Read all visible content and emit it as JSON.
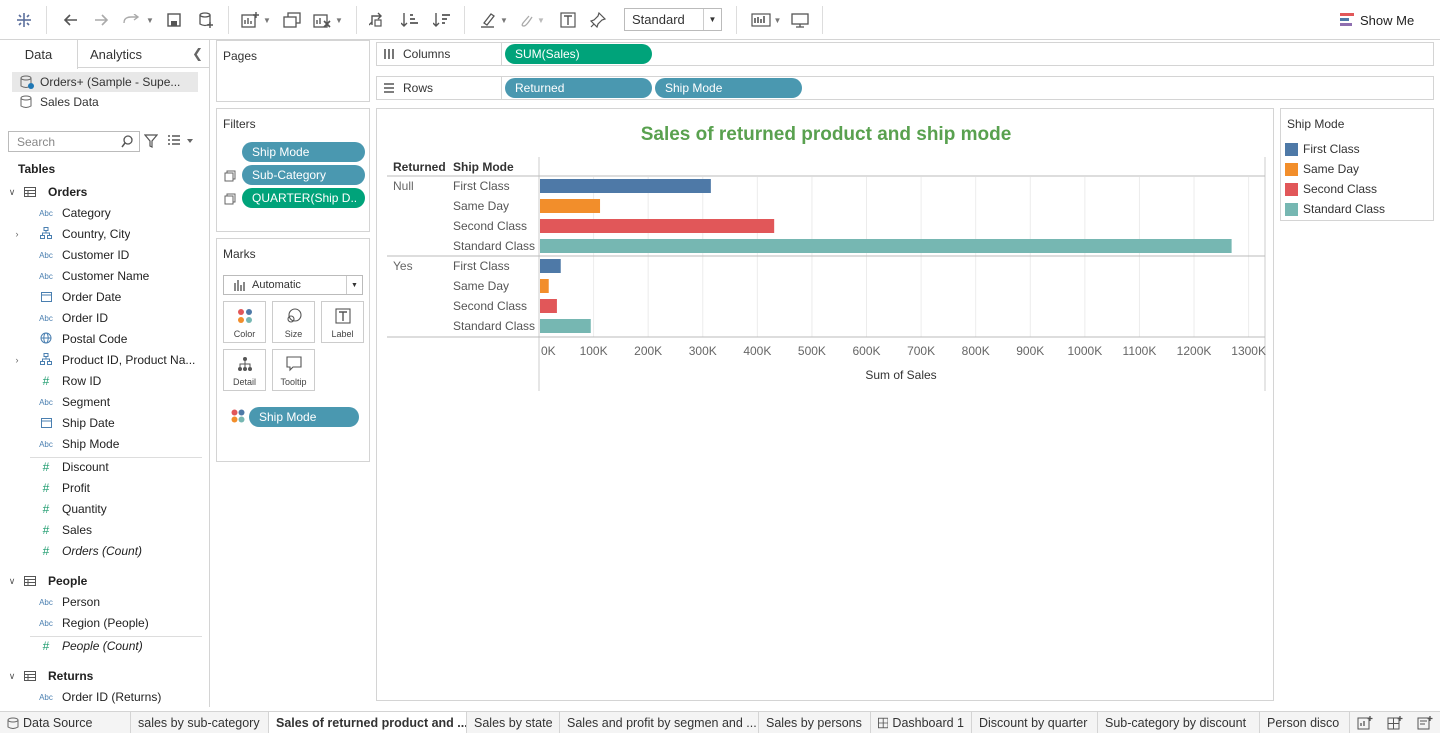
{
  "toolbar": {
    "view_select": "Standard",
    "show_me": "Show Me"
  },
  "data_pane": {
    "tabs": [
      "Data",
      "Analytics"
    ],
    "datasources": [
      "Orders+ (Sample - Supe...",
      "Sales Data"
    ],
    "search_placeholder": "Search",
    "tables_label": "Tables",
    "tables": [
      {
        "name": "Orders",
        "fields": [
          {
            "name": "Category",
            "type": "Abc"
          },
          {
            "name": "Country, City",
            "type": "hier"
          },
          {
            "name": "Customer ID",
            "type": "Abc"
          },
          {
            "name": "Customer Name",
            "type": "Abc"
          },
          {
            "name": "Order Date",
            "type": "date"
          },
          {
            "name": "Order ID",
            "type": "Abc"
          },
          {
            "name": "Postal Code",
            "type": "geo"
          },
          {
            "name": "Product ID, Product Na...",
            "type": "hier"
          },
          {
            "name": "Row ID",
            "type": "#"
          },
          {
            "name": "Segment",
            "type": "Abc"
          },
          {
            "name": "Ship Date",
            "type": "date"
          },
          {
            "name": "Ship Mode",
            "type": "Abc"
          }
        ],
        "measures": [
          {
            "name": "Discount"
          },
          {
            "name": "Profit"
          },
          {
            "name": "Quantity"
          },
          {
            "name": "Sales"
          },
          {
            "name": "Orders (Count)"
          }
        ]
      },
      {
        "name": "People",
        "fields": [
          {
            "name": "Person",
            "type": "Abc"
          },
          {
            "name": "Region (People)",
            "type": "Abc"
          }
        ],
        "measures": [
          {
            "name": "People (Count)"
          }
        ]
      },
      {
        "name": "Returns",
        "fields": [
          {
            "name": "Order ID (Returns)",
            "type": "Abc"
          }
        ],
        "measures": []
      }
    ]
  },
  "pages": {
    "title": "Pages"
  },
  "filters": {
    "title": "Filters",
    "items": [
      "Ship Mode",
      "Sub-Category",
      "QUARTER(Ship D.."
    ]
  },
  "marks": {
    "title": "Marks",
    "type": "Automatic",
    "buttons": [
      "Color",
      "Size",
      "Label",
      "Detail",
      "Tooltip"
    ],
    "color_pill": "Ship Mode"
  },
  "shelves": {
    "columns_label": "Columns",
    "columns": [
      "SUM(Sales)"
    ],
    "rows_label": "Rows",
    "rows": [
      "Returned",
      "Ship Mode"
    ]
  },
  "chart_data": {
    "type": "bar",
    "title": "Sales of returned product and ship mode",
    "xlabel": "Sum of Sales",
    "row_headers": [
      "Returned",
      "Ship Mode"
    ],
    "xlim": [
      0,
      1330000
    ],
    "x_ticks": [
      0,
      100000,
      200000,
      300000,
      400000,
      500000,
      600000,
      700000,
      800000,
      900000,
      1000000,
      1100000,
      1200000,
      1300000
    ],
    "x_tick_labels": [
      "0K",
      "100K",
      "200K",
      "300K",
      "400K",
      "500K",
      "600K",
      "700K",
      "800K",
      "900K",
      "1000K",
      "1100K",
      "1200K",
      "1300K"
    ],
    "groups": [
      {
        "name": "Null",
        "categories": [
          "First Class",
          "Same Day",
          "Second Class",
          "Standard Class"
        ],
        "values": [
          313000,
          110000,
          429000,
          1267000
        ]
      },
      {
        "name": "Yes",
        "categories": [
          "First Class",
          "Same Day",
          "Second Class",
          "Standard Class"
        ],
        "values": [
          38000,
          16000,
          31000,
          93000
        ]
      }
    ],
    "colors": {
      "First Class": "#4e79a7",
      "Same Day": "#f28e2b",
      "Second Class": "#e15759",
      "Standard Class": "#76b7b2"
    },
    "grid": true
  },
  "legend": {
    "title": "Ship Mode",
    "items": [
      {
        "label": "First Class",
        "color": "#4e79a7"
      },
      {
        "label": "Same Day",
        "color": "#f28e2b"
      },
      {
        "label": "Second Class",
        "color": "#e15759"
      },
      {
        "label": "Standard Class",
        "color": "#76b7b2"
      }
    ]
  },
  "bottom_tabs": {
    "data_source": "Data Source",
    "sheets": [
      "sales by sub-category",
      "Sales of returned product and ...",
      "Sales by state",
      "Sales and profit by segmen and ...",
      "Sales by persons",
      "Dashboard 1",
      "Discount by quarter",
      "Sub-category by discount",
      "Person disco"
    ],
    "active_index": 1
  }
}
